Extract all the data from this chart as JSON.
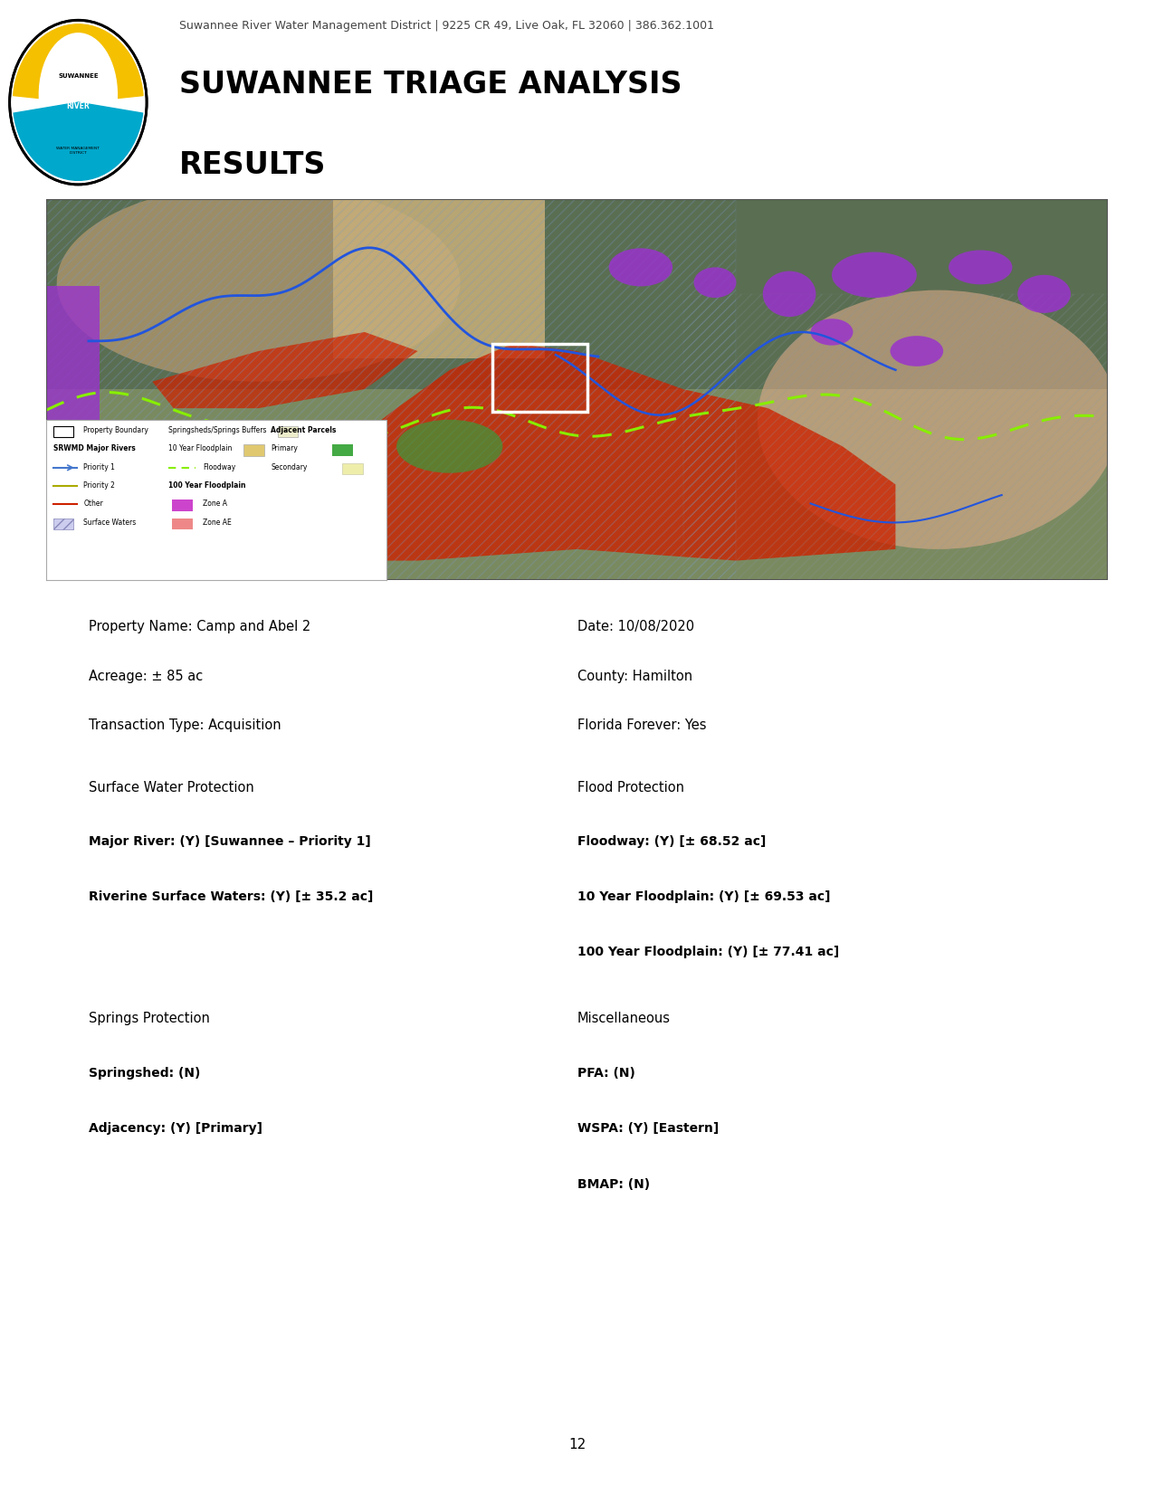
{
  "header_address": "Suwannee River Water Management District | 9225 CR 49, Live Oak, FL 32060 | 386.362.1001",
  "page_title_line1": "SUWANNEE TRIAGE ANALYSIS",
  "page_title_line2": "RESULTS",
  "property_name": "Property Name: Camp and Abel 2",
  "date_str": "Date: 10/08/2020",
  "acreage": "Acreage: ± 85 ac",
  "county": "County: Hamilton",
  "transaction_type": "Transaction Type: Acquisition",
  "florida_forever": "Florida Forever: Yes",
  "s2_left_hdr": "Surface Water Protection",
  "s2_right_hdr": "Flood Protection",
  "major_river": "Major River: (Y) [Suwannee – Priority 1]",
  "riverine": "Riverine Surface Waters: (Y) [± 35.2 ac]",
  "floodway": "Floodway: (Y) [± 68.52 ac]",
  "floodplain10": "10 Year Floodplain: (Y) [± 69.53 ac]",
  "floodplain100": "100 Year Floodplain: (Y) [± 77.41 ac]",
  "s3_left_hdr": "Springs Protection",
  "s3_right_hdr": "Miscellaneous",
  "springshed": "Springshed: (N)",
  "adjacency": "Adjacency: (Y) [Primary]",
  "pfa": "PFA: (N)",
  "wspa": "WSPA: (Y) [Eastern]",
  "bmap": "BMAP: (N)",
  "page_number": "12",
  "bg_white": "#ffffff",
  "bg_gray": "#e8e8e8",
  "logo_yellow": "#f5c000",
  "logo_cyan": "#00a8cc",
  "logo_black": "#000000"
}
